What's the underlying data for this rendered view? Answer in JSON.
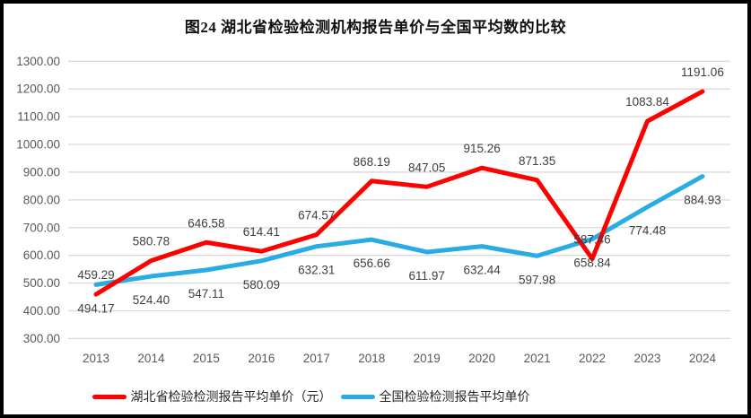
{
  "chart_data": {
    "type": "line",
    "title": "图24 湖北省检验检测机构报告单价与全国平均数的比较",
    "categories": [
      "2013",
      "2014",
      "2015",
      "2016",
      "2017",
      "2018",
      "2019",
      "2020",
      "2021",
      "2022",
      "2023",
      "2024"
    ],
    "series": [
      {
        "name": "湖北省检验检测报告平均单价（元）",
        "color": "#FE0000",
        "label_position": "above",
        "values": [
          459.29,
          580.78,
          646.58,
          614.41,
          674.57,
          868.19,
          847.05,
          915.26,
          871.35,
          587.46,
          1083.84,
          1191.06
        ]
      },
      {
        "name": "全国检验检测报告平均单价",
        "color": "#29ABE3",
        "label_position": "below",
        "values": [
          494.17,
          524.4,
          547.11,
          580.09,
          632.31,
          656.66,
          611.97,
          632.44,
          597.98,
          658.84,
          774.48,
          884.93
        ]
      }
    ],
    "ylim": [
      300,
      1300
    ],
    "y_step": 100,
    "y_tick_decimals": 2,
    "grid": true,
    "legend_position": "bottom",
    "colors": {
      "gridline": "#D9D9D9",
      "axis_text": "#595959",
      "data_label_text": "#3F3F3F",
      "frame_border": "#000000",
      "background": "#FFFFFF"
    }
  }
}
